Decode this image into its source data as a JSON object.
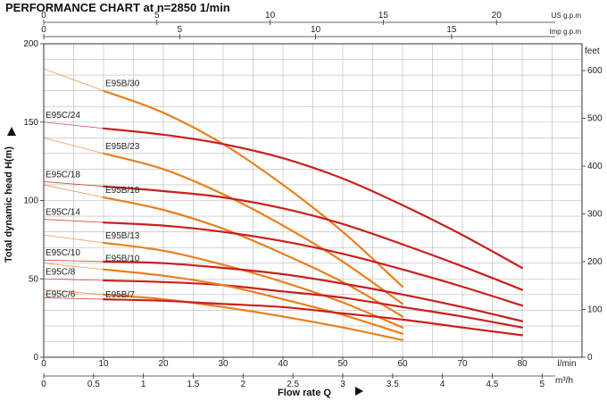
{
  "chart_data": {
    "type": "line",
    "title": "PERFORMANCE CHART at n=2850 1/min",
    "ylabel": "Total dynamic head H(m)",
    "xlabel": "Flow rate Q",
    "x_unit": "l/min",
    "xlim": [
      0,
      90
    ],
    "ylim": [
      0,
      200
    ],
    "y_ticks": [
      0,
      50,
      100,
      150,
      200
    ],
    "x_ticks_lmin": [
      0,
      10,
      20,
      30,
      40,
      50,
      60,
      70,
      80
    ],
    "grid": true,
    "axes": {
      "feet": {
        "unit": "feet",
        "ticks": [
          "0",
          "100",
          "200",
          "300",
          "400",
          "500",
          "600"
        ]
      },
      "us_gpm": {
        "unit": "US g.p.m",
        "ticks": [
          "0",
          "5",
          "10",
          "15",
          "20"
        ]
      },
      "imp_gpm": {
        "unit": "Imp g.p.m",
        "ticks": [
          "0",
          "5",
          "10",
          "15"
        ]
      },
      "m3h": {
        "unit": "m³/h",
        "ticks": [
          "0",
          "0.5",
          "1",
          "1.5",
          "2",
          "2.5",
          "3",
          "3.5",
          "4",
          "4.5",
          "5"
        ]
      }
    },
    "series": [
      {
        "name": "E95B/30",
        "family": "B",
        "x": [
          10,
          20,
          30,
          40,
          50,
          60
        ],
        "y": [
          170,
          156,
          136,
          110,
          80,
          45
        ]
      },
      {
        "name": "E95C/24",
        "family": "C",
        "x": [
          10,
          20,
          30,
          40,
          50,
          60,
          70,
          80
        ],
        "y": [
          146,
          142,
          136,
          127,
          114,
          97,
          78,
          57
        ]
      },
      {
        "name": "E95B/23",
        "family": "B",
        "x": [
          10,
          20,
          30,
          40,
          50,
          60
        ],
        "y": [
          130,
          120,
          104,
          84,
          61,
          34
        ]
      },
      {
        "name": "E95C/18",
        "family": "C",
        "x": [
          10,
          20,
          30,
          40,
          50,
          60,
          70,
          80
        ],
        "y": [
          109,
          106,
          102,
          95,
          85,
          72,
          58,
          43
        ]
      },
      {
        "name": "E95B/18",
        "family": "B",
        "x": [
          10,
          20,
          30,
          40,
          50,
          60
        ],
        "y": [
          102,
          94,
          82,
          66,
          48,
          26
        ]
      },
      {
        "name": "E95C/14",
        "family": "C",
        "x": [
          10,
          20,
          30,
          40,
          50,
          60,
          70,
          80
        ],
        "y": [
          86,
          84,
          80,
          74,
          66,
          56,
          45,
          33
        ]
      },
      {
        "name": "E95B/13",
        "family": "B",
        "x": [
          10,
          20,
          30,
          40,
          50,
          60
        ],
        "y": [
          73,
          68,
          59,
          48,
          35,
          19
        ]
      },
      {
        "name": "E95C/10",
        "family": "C",
        "x": [
          10,
          20,
          30,
          40,
          50,
          60,
          70,
          80
        ],
        "y": [
          61,
          60,
          57,
          53,
          47,
          40,
          32,
          23
        ]
      },
      {
        "name": "E95C/8",
        "family": "C",
        "x": [
          10,
          20,
          30,
          40,
          50,
          60,
          70,
          80
        ],
        "y": [
          49,
          48,
          46,
          42,
          38,
          32,
          26,
          19
        ]
      },
      {
        "name": "E95B/10",
        "family": "B",
        "x": [
          10,
          20,
          30,
          40,
          50,
          60
        ],
        "y": [
          56,
          52,
          46,
          37,
          27,
          15
        ]
      },
      {
        "name": "E95B/7",
        "family": "B",
        "x": [
          10,
          20,
          30,
          40,
          50,
          60
        ],
        "y": [
          40,
          37,
          32,
          26,
          19,
          11
        ]
      },
      {
        "name": "E95C/6",
        "family": "C",
        "x": [
          10,
          20,
          30,
          40,
          50,
          60,
          70,
          80
        ],
        "y": [
          37,
          36,
          34,
          32,
          28,
          24,
          19,
          14
        ]
      }
    ],
    "colors": {
      "B": "#e8801e",
      "C": "#c8201e",
      "grid": "#b8b8b8",
      "axis": "#333333"
    }
  }
}
